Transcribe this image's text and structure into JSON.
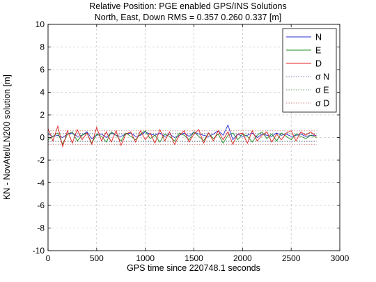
{
  "chart_data": {
    "type": "line",
    "title": "Relative Position: PGE enabled GPS/INS Solutions",
    "subtitle": "North, East, Down RMS = 0.357 0.260 0.337 [m]",
    "xlabel": "GPS time since 220748.1 seconds",
    "ylabel": "KN - NovAtel/LN200 solution [m]",
    "xlim": [
      0,
      3000
    ],
    "ylim": [
      -10,
      10
    ],
    "xticks": [
      0,
      500,
      1000,
      1500,
      2000,
      2500,
      3000
    ],
    "yticks": [
      -10,
      -8,
      -6,
      -4,
      -2,
      0,
      2,
      4,
      6,
      8,
      10
    ],
    "grid": true,
    "legend_position": "top-right",
    "series": [
      {
        "name": "N",
        "color": "#2b2bd6",
        "style": "solid",
        "x": [
          0,
          50,
          100,
          150,
          200,
          250,
          300,
          350,
          400,
          450,
          500,
          550,
          600,
          650,
          700,
          750,
          800,
          850,
          900,
          950,
          1000,
          1050,
          1100,
          1150,
          1200,
          1250,
          1300,
          1350,
          1400,
          1450,
          1500,
          1550,
          1600,
          1650,
          1700,
          1750,
          1800,
          1850,
          1900,
          1950,
          2000,
          2050,
          2100,
          2150,
          2200,
          2250,
          2300,
          2350,
          2400,
          2450,
          2500,
          2550,
          2600,
          2650,
          2700,
          2760
        ],
        "y": [
          0.3,
          0.1,
          0.2,
          0.0,
          0.3,
          0.4,
          0.1,
          0.2,
          0.5,
          -0.1,
          0.2,
          0.3,
          0.0,
          0.4,
          0.2,
          0.1,
          0.3,
          0.4,
          0.1,
          0.2,
          0.5,
          0.3,
          0.2,
          0.4,
          0.1,
          0.3,
          0.0,
          0.2,
          0.4,
          0.1,
          0.5,
          0.3,
          0.2,
          0.1,
          0.3,
          0.6,
          0.2,
          1.1,
          -0.2,
          0.3,
          0.1,
          0.2,
          0.4,
          0.0,
          0.3,
          0.2,
          0.1,
          0.4,
          0.2,
          0.3,
          0.1,
          0.2,
          0.3,
          0.1,
          0.2,
          0.2
        ]
      },
      {
        "name": "E",
        "color": "#1f8a1f",
        "style": "solid",
        "x": [
          0,
          50,
          100,
          150,
          200,
          250,
          300,
          350,
          400,
          450,
          500,
          550,
          600,
          650,
          700,
          750,
          800,
          850,
          900,
          950,
          1000,
          1050,
          1100,
          1150,
          1200,
          1250,
          1300,
          1350,
          1400,
          1450,
          1500,
          1550,
          1600,
          1650,
          1700,
          1750,
          1800,
          1850,
          1900,
          1950,
          2000,
          2050,
          2100,
          2150,
          2200,
          2250,
          2300,
          2350,
          2400,
          2450,
          2500,
          2550,
          2600,
          2650,
          2700,
          2760
        ],
        "y": [
          -0.2,
          0.1,
          0.4,
          -0.6,
          0.3,
          0.5,
          -0.3,
          0.2,
          0.4,
          -0.5,
          0.3,
          0.1,
          -0.4,
          0.5,
          0.2,
          -0.3,
          0.4,
          0.1,
          -0.2,
          0.3,
          0.6,
          -0.1,
          0.2,
          -0.4,
          0.3,
          0.1,
          -0.3,
          0.4,
          0.2,
          -0.2,
          0.5,
          0.1,
          -0.3,
          0.4,
          -0.1,
          0.3,
          -0.5,
          0.2,
          0.4,
          -0.2,
          0.3,
          0.1,
          -0.4,
          0.2,
          0.5,
          -0.1,
          0.3,
          -0.3,
          0.4,
          0.1,
          -0.2,
          0.3,
          0.1,
          -0.1,
          0.2,
          0.0
        ]
      },
      {
        "name": "D",
        "color": "#e02020",
        "style": "solid",
        "x": [
          0,
          50,
          100,
          150,
          200,
          250,
          300,
          350,
          400,
          450,
          500,
          550,
          600,
          650,
          700,
          750,
          800,
          850,
          900,
          950,
          1000,
          1050,
          1100,
          1150,
          1200,
          1250,
          1300,
          1350,
          1400,
          1450,
          1500,
          1550,
          1600,
          1650,
          1700,
          1750,
          1800,
          1850,
          1900,
          1950,
          2000,
          2050,
          2100,
          2150,
          2200,
          2250,
          2300,
          2350,
          2400,
          2450,
          2500,
          2550,
          2600,
          2650,
          2700,
          2760
        ],
        "y": [
          0.8,
          -0.3,
          1.0,
          -0.8,
          0.6,
          -0.5,
          0.7,
          -0.2,
          0.4,
          -0.6,
          0.9,
          -0.3,
          0.5,
          -0.4,
          0.6,
          -0.7,
          0.3,
          0.5,
          -0.4,
          0.6,
          -0.2,
          0.4,
          -0.5,
          0.7,
          -0.3,
          0.5,
          -0.6,
          0.2,
          0.6,
          -0.4,
          0.3,
          0.7,
          -0.5,
          0.4,
          -0.3,
          0.6,
          -0.2,
          0.5,
          -0.6,
          0.3,
          0.4,
          -0.5,
          0.6,
          -0.3,
          0.2,
          0.5,
          -0.4,
          0.3,
          -0.2,
          0.4,
          0.6,
          -0.3,
          0.5,
          0.2,
          0.5,
          0.1
        ]
      },
      {
        "name": "σ N",
        "color": "#7a7aa8",
        "style": "dotted",
        "x": [
          0,
          2760
        ],
        "y": [
          0.35,
          0.35
        ],
        "mirror": true
      },
      {
        "name": "σ E",
        "color": "#6f9a6f",
        "style": "dotted",
        "x": [
          0,
          2760
        ],
        "y": [
          0.3,
          0.3
        ],
        "mirror": true
      },
      {
        "name": "σ D",
        "color": "#c98080",
        "style": "dotted",
        "x": [
          0,
          2760
        ],
        "y": [
          0.6,
          0.6
        ],
        "mirror": true
      }
    ]
  }
}
